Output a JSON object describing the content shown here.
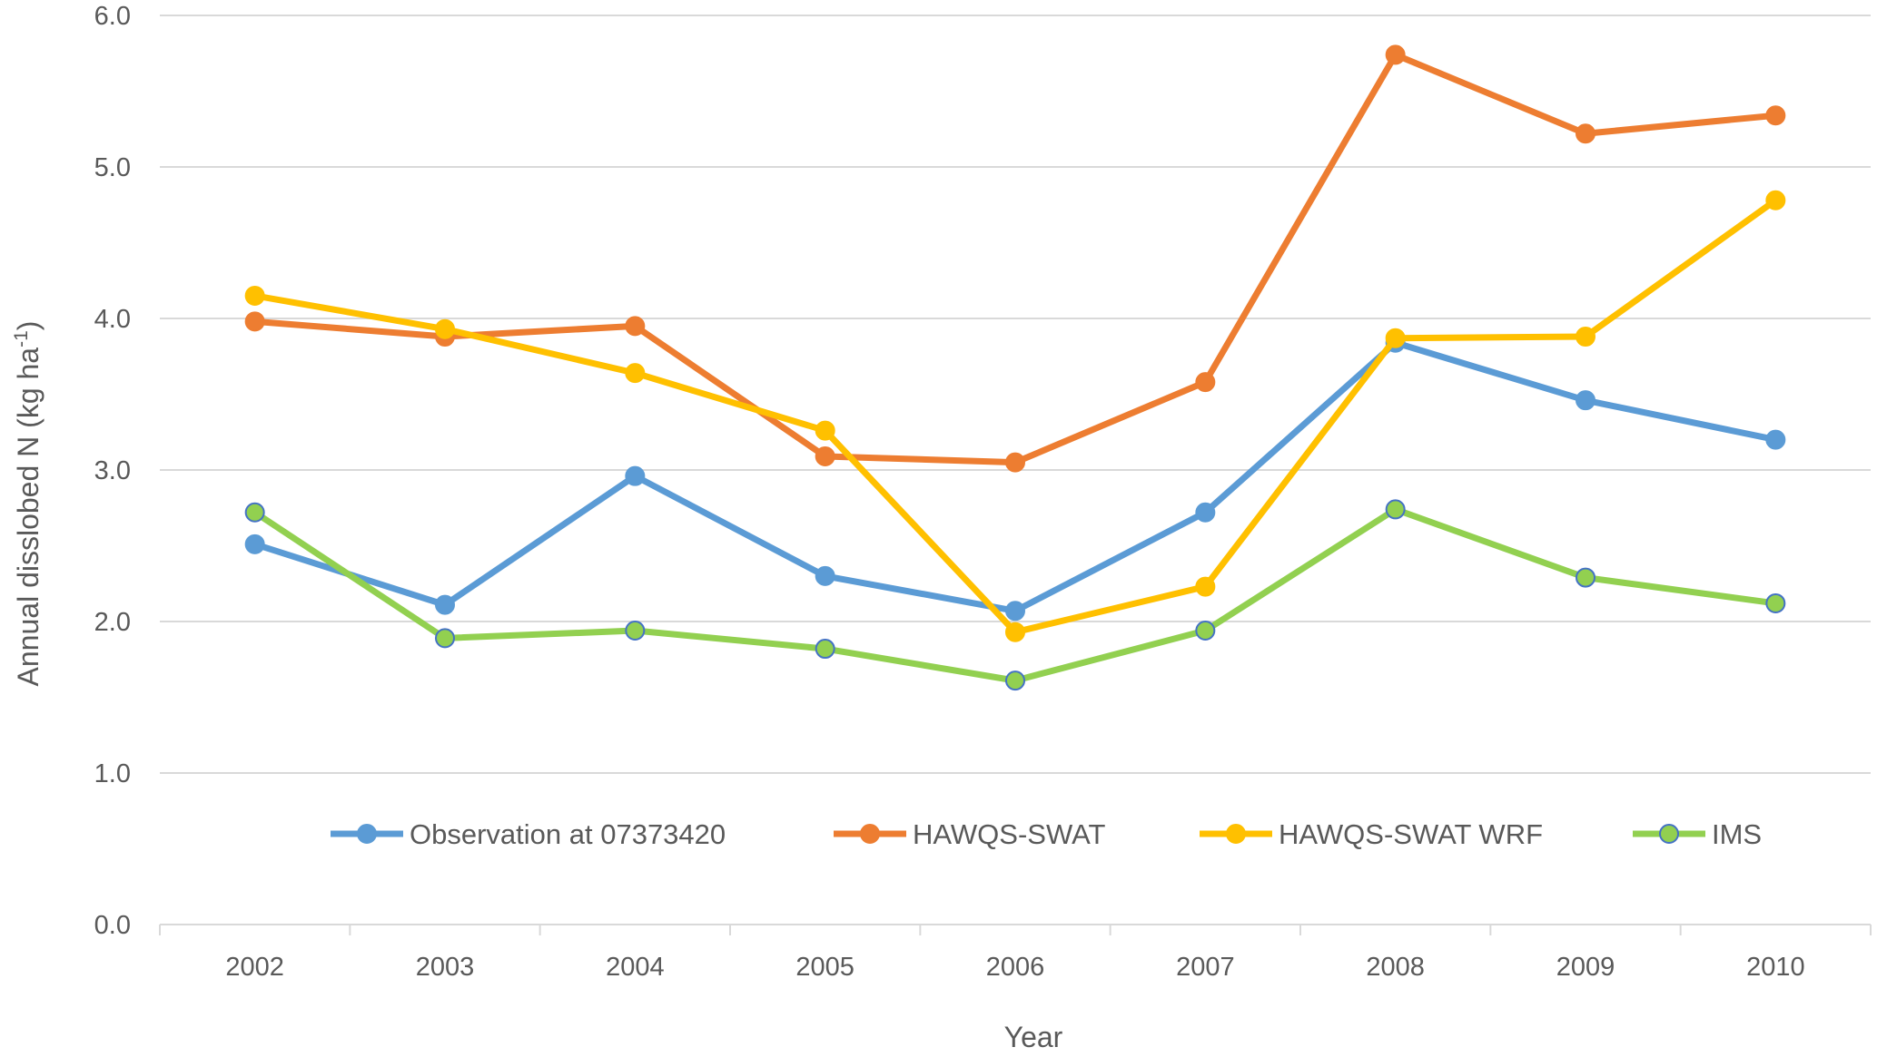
{
  "chart_data": {
    "type": "line",
    "title": "",
    "xlabel": "Year",
    "ylabel": "Annual disslobed N (kg ha",
    "ylabel_sup": "-1",
    "ylabel_end": ")",
    "ylim": [
      0,
      6
    ],
    "yticks": [
      "0.0",
      "1.0",
      "2.0",
      "3.0",
      "4.0",
      "5.0",
      "6.0"
    ],
    "grid": true,
    "legend_position": "inside-bottom",
    "categories": [
      "2002",
      "2003",
      "2004",
      "2005",
      "2006",
      "2007",
      "2008",
      "2009",
      "2010"
    ],
    "series": [
      {
        "name": "Observation at 07373420",
        "color": "#5B9BD5",
        "marker_fill": "#5B9BD5",
        "marker_stroke": "#5B9BD5",
        "values": [
          2.51,
          2.11,
          2.96,
          2.3,
          2.07,
          2.72,
          3.84,
          3.46,
          3.2
        ]
      },
      {
        "name": "HAWQS-SWAT",
        "color": "#ED7D31",
        "marker_fill": "#ED7D31",
        "marker_stroke": "#ED7D31",
        "values": [
          3.98,
          3.88,
          3.95,
          3.09,
          3.05,
          3.58,
          5.74,
          5.22,
          5.34
        ]
      },
      {
        "name": "HAWQS-SWAT WRF",
        "color": "#FFC000",
        "marker_fill": "#FFC000",
        "marker_stroke": "#FFC000",
        "values": [
          4.15,
          3.93,
          3.64,
          3.26,
          1.93,
          2.23,
          3.87,
          3.88,
          4.78
        ]
      },
      {
        "name": "IMS",
        "color": "#92D050",
        "marker_fill": "#92D050",
        "marker_stroke": "#4472C4",
        "values": [
          2.72,
          1.89,
          1.94,
          1.82,
          1.61,
          1.94,
          2.74,
          2.29,
          2.12
        ]
      }
    ]
  }
}
